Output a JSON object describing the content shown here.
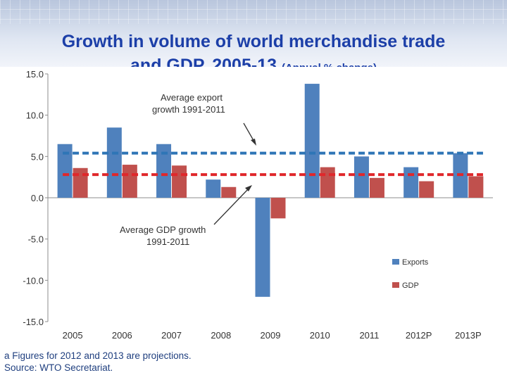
{
  "slide": {
    "title_line1": "Growth in volume of world merchandise trade",
    "title_line2": "and GDP, 2005-13",
    "subtitle": "(Annual % change)"
  },
  "colors": {
    "exports": "#4f81bd",
    "gdp": "#c0504d",
    "avg_export_line": "#2e75b6",
    "avg_gdp_line": "#e0272b",
    "title": "#1c3fa8"
  },
  "chart_data": {
    "type": "bar",
    "categories": [
      "2005",
      "2006",
      "2007",
      "2008",
      "2009",
      "2010",
      "2011",
      "2012P",
      "2013P"
    ],
    "series": [
      {
        "name": "Exports",
        "values": [
          6.5,
          8.5,
          6.5,
          2.2,
          -12.0,
          13.8,
          5.0,
          3.7,
          5.4
        ]
      },
      {
        "name": "GDP",
        "values": [
          3.6,
          4.0,
          3.9,
          1.3,
          -2.5,
          3.7,
          2.4,
          2.0,
          2.6
        ]
      }
    ],
    "reference_lines": [
      {
        "label_line1": "Average export",
        "label_line2": "growth 1991-2011",
        "value": 5.4,
        "style": "dashed"
      },
      {
        "label_line1": "Average GDP growth",
        "label_line2": "1991-2011",
        "value": 2.8,
        "style": "dashed"
      }
    ],
    "ylim": [
      -15,
      15
    ],
    "yticks": [
      "15.0",
      "10.0",
      "5.0",
      "0.0",
      "-5.0",
      "-10.0",
      "-15.0"
    ],
    "ytick_values": [
      15,
      10,
      5,
      0,
      -5,
      -10,
      -15
    ],
    "legend_position": "right",
    "grid": false
  },
  "footnote": {
    "line1": "a  Figures for 2012 and 2013 are projections.",
    "line2": "Source: WTO Secretariat."
  }
}
